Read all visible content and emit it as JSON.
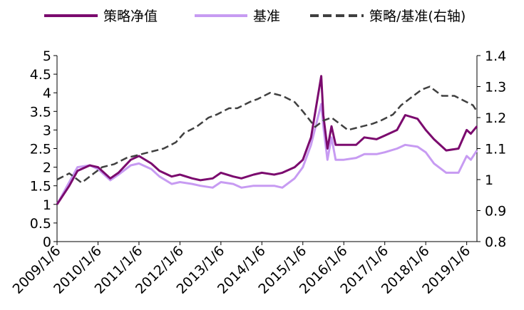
{
  "chart_data": {
    "type": "line",
    "title": "",
    "x_ticks": [
      "2009/1/6",
      "2010/1/6",
      "2011/1/6",
      "2012/1/6",
      "2013/1/6",
      "2014/1/6",
      "2015/1/6",
      "2016/1/6",
      "2017/1/6",
      "2018/1/6",
      "2019/1/6"
    ],
    "y_left": {
      "ylim": [
        0,
        5
      ],
      "ticks": [
        "0",
        "0.5",
        "1",
        "1.5",
        "2",
        "2.5",
        "3",
        "3.5",
        "4",
        "4.5",
        "5"
      ]
    },
    "y_right": {
      "ylim": [
        0.8,
        1.4
      ],
      "ticks": [
        "0.8",
        "0.9",
        "1",
        "1.1",
        "1.2",
        "1.3",
        "1.4"
      ]
    },
    "legend": {
      "placement": "top"
    },
    "series": [
      {
        "name": "策略净值",
        "axis": "left",
        "color": "#7B0A6E",
        "style": "solid",
        "x": [
          2009.0,
          2009.3,
          2009.5,
          2009.8,
          2010.0,
          2010.3,
          2010.5,
          2010.8,
          2011.0,
          2011.3,
          2011.5,
          2011.8,
          2012.0,
          2012.3,
          2012.5,
          2012.8,
          2013.0,
          2013.3,
          2013.5,
          2013.8,
          2014.0,
          2014.3,
          2014.5,
          2014.8,
          2015.0,
          2015.2,
          2015.45,
          2015.5,
          2015.6,
          2015.7,
          2015.8,
          2016.0,
          2016.3,
          2016.5,
          2016.8,
          2017.0,
          2017.3,
          2017.5,
          2017.8,
          2018.0,
          2018.2,
          2018.5,
          2018.8,
          2019.0,
          2019.1,
          2019.25
        ],
        "y": [
          1.0,
          1.5,
          1.9,
          2.05,
          2.0,
          1.7,
          1.85,
          2.2,
          2.3,
          2.1,
          1.9,
          1.75,
          1.8,
          1.7,
          1.65,
          1.7,
          1.85,
          1.75,
          1.7,
          1.8,
          1.85,
          1.8,
          1.85,
          2.0,
          2.2,
          2.8,
          4.45,
          3.4,
          2.5,
          3.1,
          2.6,
          2.6,
          2.6,
          2.8,
          2.75,
          2.85,
          3.0,
          3.4,
          3.3,
          3.0,
          2.75,
          2.45,
          2.5,
          3.0,
          2.9,
          3.1
        ]
      },
      {
        "name": "基准",
        "axis": "left",
        "color": "#C79BF2",
        "style": "solid",
        "x": [
          2009.0,
          2009.3,
          2009.5,
          2009.8,
          2010.0,
          2010.3,
          2010.5,
          2010.8,
          2011.0,
          2011.3,
          2011.5,
          2011.8,
          2012.0,
          2012.3,
          2012.5,
          2012.8,
          2013.0,
          2013.3,
          2013.5,
          2013.8,
          2014.0,
          2014.3,
          2014.5,
          2014.8,
          2015.0,
          2015.2,
          2015.45,
          2015.5,
          2015.6,
          2015.7,
          2015.8,
          2016.0,
          2016.3,
          2016.5,
          2016.8,
          2017.0,
          2017.3,
          2017.5,
          2017.8,
          2018.0,
          2018.2,
          2018.5,
          2018.8,
          2019.0,
          2019.1,
          2019.25
        ],
        "y": [
          1.0,
          1.6,
          2.0,
          2.05,
          1.95,
          1.65,
          1.8,
          2.05,
          2.1,
          1.95,
          1.75,
          1.55,
          1.6,
          1.55,
          1.5,
          1.45,
          1.6,
          1.55,
          1.45,
          1.5,
          1.5,
          1.5,
          1.45,
          1.7,
          2.0,
          2.6,
          3.7,
          3.1,
          2.2,
          2.8,
          2.2,
          2.2,
          2.25,
          2.35,
          2.35,
          2.4,
          2.5,
          2.6,
          2.55,
          2.4,
          2.1,
          1.85,
          1.85,
          2.3,
          2.2,
          2.45
        ]
      },
      {
        "name": "策略/基准(右轴)",
        "axis": "right",
        "color": "#404040",
        "style": "dashed",
        "x": [
          2009.0,
          2009.3,
          2009.6,
          2009.9,
          2010.1,
          2010.4,
          2010.7,
          2011.0,
          2011.3,
          2011.6,
          2011.9,
          2012.1,
          2012.4,
          2012.7,
          2012.9,
          2013.2,
          2013.4,
          2013.7,
          2013.9,
          2014.2,
          2014.5,
          2014.8,
          2015.0,
          2015.3,
          2015.5,
          2015.7,
          2015.9,
          2016.1,
          2016.4,
          2016.7,
          2016.9,
          2017.2,
          2017.4,
          2017.7,
          2017.9,
          2018.1,
          2018.4,
          2018.7,
          2019.0,
          2019.15,
          2019.25
        ],
        "y": [
          1.0,
          1.02,
          0.99,
          1.02,
          1.04,
          1.05,
          1.07,
          1.08,
          1.09,
          1.1,
          1.12,
          1.15,
          1.17,
          1.2,
          1.21,
          1.23,
          1.23,
          1.25,
          1.26,
          1.28,
          1.27,
          1.25,
          1.22,
          1.17,
          1.19,
          1.2,
          1.18,
          1.16,
          1.17,
          1.18,
          1.19,
          1.21,
          1.24,
          1.27,
          1.29,
          1.3,
          1.27,
          1.27,
          1.25,
          1.24,
          1.22
        ]
      }
    ]
  }
}
